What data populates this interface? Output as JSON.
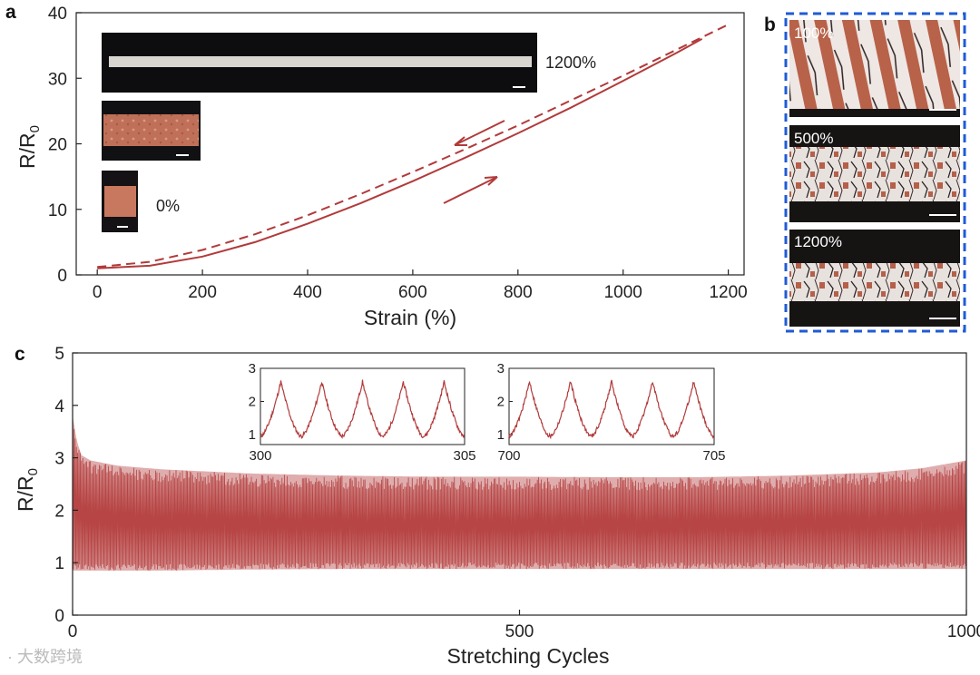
{
  "panels": {
    "a": "a",
    "b": "b",
    "c": "c"
  },
  "colors": {
    "curve": "#b23a3a",
    "dashed_box": "#1f5bd6",
    "copper": "#c8785e"
  },
  "chart_data": [
    {
      "panel": "a",
      "type": "line",
      "xlabel": "Strain (%)",
      "ylabel": "R/R₀",
      "ylabel_main": "R/R",
      "ylabel_sub": "0",
      "xlim": [
        -40,
        1230
      ],
      "ylim": [
        0,
        40
      ],
      "xticks": [
        0,
        200,
        400,
        600,
        800,
        1000,
        1200
      ],
      "yticks": [
        0,
        10,
        20,
        30,
        40
      ],
      "series": [
        {
          "name": "stretching",
          "style": "solid",
          "x": [
            0,
            100,
            200,
            300,
            400,
            500,
            600,
            700,
            800,
            900,
            1000,
            1100,
            1150
          ],
          "y": [
            1,
            1.4,
            2.8,
            5.0,
            7.8,
            10.9,
            14.3,
            17.9,
            21.6,
            25.5,
            29.6,
            33.8,
            36.0
          ]
        },
        {
          "name": "releasing",
          "style": "dashed",
          "x": [
            0,
            100,
            200,
            300,
            400,
            500,
            600,
            700,
            800,
            900,
            1000,
            1100,
            1200
          ],
          "y": [
            1.2,
            2.0,
            3.8,
            6.2,
            9.1,
            12.3,
            15.7,
            19.2,
            22.8,
            26.6,
            30.4,
            34.3,
            38.2
          ]
        }
      ],
      "annotations": [
        "1200%",
        "0%"
      ]
    },
    {
      "panel": "c",
      "type": "line",
      "xlabel": "Stretching Cycles",
      "ylabel": "R/R₀",
      "ylabel_main": "R/R",
      "ylabel_sub": "0",
      "xlim": [
        0,
        1000
      ],
      "ylim": [
        0,
        5
      ],
      "xticks": [
        0,
        500,
        1000
      ],
      "yticks": [
        0,
        1,
        2,
        3,
        4,
        5
      ],
      "envelope": {
        "cycles": [
          0,
          5,
          10,
          20,
          50,
          100,
          200,
          300,
          400,
          500,
          600,
          700,
          800,
          900,
          950,
          1000
        ],
        "max": [
          3.8,
          3.3,
          3.05,
          2.95,
          2.85,
          2.78,
          2.7,
          2.66,
          2.64,
          2.64,
          2.63,
          2.63,
          2.66,
          2.72,
          2.8,
          2.95
        ],
        "min": [
          0.85,
          0.85,
          0.85,
          0.85,
          0.85,
          0.85,
          0.87,
          0.88,
          0.88,
          0.88,
          0.88,
          0.88,
          0.88,
          0.88,
          0.88,
          0.88
        ]
      },
      "insets": [
        {
          "xlim": [
            300,
            305
          ],
          "ylim": [
            0.7,
            3
          ],
          "xtick_labels": [
            "300",
            "305"
          ],
          "yticks": [
            1,
            2,
            3
          ],
          "peak": 2.6,
          "trough": 0.95
        },
        {
          "xlim": [
            700,
            705
          ],
          "ylim": [
            0.7,
            3
          ],
          "xtick_labels": [
            "700",
            "705"
          ],
          "yticks": [
            1,
            2,
            3
          ],
          "peak": 2.6,
          "trough": 0.95
        }
      ]
    }
  ],
  "panel_b": {
    "labels": [
      "100%",
      "500%",
      "1200%"
    ]
  },
  "watermark": "· 大数跨境"
}
